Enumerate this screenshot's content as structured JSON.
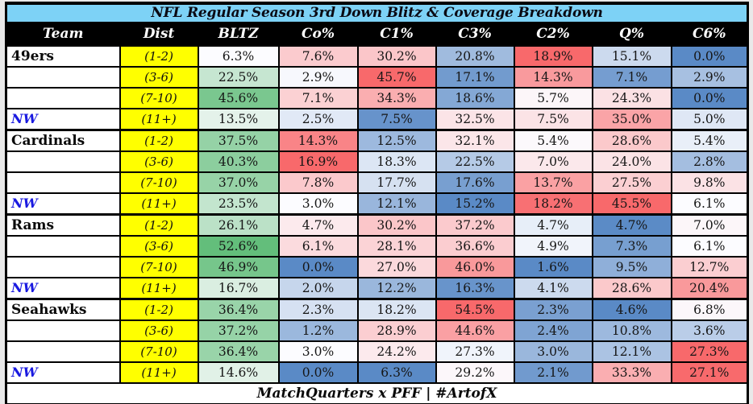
{
  "chart_data": {
    "type": "heatmap",
    "title": "NFL Regular Season 3rd Down Blitz & Coverage Breakdown",
    "columns": [
      "Team",
      "Dist",
      "BLTZ",
      "Co%",
      "C1%",
      "C3%",
      "C2%",
      "Q%",
      "C6%"
    ],
    "value_unit": "percent",
    "value_format": "one_decimal_percent",
    "color_scales": {
      "bltz": {
        "min": "#FCFCFF",
        "max": "#63BE7B"
      },
      "coverage": {
        "low": "#5A8AC6",
        "mid": "#FCFCFF",
        "high": "#F8696B"
      },
      "midpoint_rule": "50th-percentile-per-column"
    },
    "rows": [
      {
        "label": "49ers",
        "label_style": "team",
        "dist": "(1-2)",
        "values": [
          6.3,
          7.6,
          30.2,
          20.8,
          18.9,
          15.1,
          0.0
        ]
      },
      {
        "label": "",
        "label_style": "none",
        "dist": "(3-6)",
        "values": [
          22.5,
          2.9,
          45.7,
          17.1,
          14.3,
          7.1,
          2.9
        ]
      },
      {
        "label": "",
        "label_style": "none",
        "dist": "(7-10)",
        "values": [
          45.6,
          7.1,
          34.3,
          18.6,
          5.7,
          24.3,
          0.0
        ]
      },
      {
        "label": "NW",
        "label_style": "nw",
        "dist": "(11+)",
        "values": [
          13.5,
          2.5,
          7.5,
          32.5,
          7.5,
          35.0,
          5.0
        ]
      },
      {
        "label": "Cardinals",
        "label_style": "team",
        "dist": "(1-2)",
        "values": [
          37.5,
          14.3,
          12.5,
          32.1,
          5.4,
          28.6,
          5.4
        ]
      },
      {
        "label": "",
        "label_style": "none",
        "dist": "(3-6)",
        "values": [
          40.3,
          16.9,
          18.3,
          22.5,
          7.0,
          24.0,
          2.8
        ]
      },
      {
        "label": "",
        "label_style": "none",
        "dist": "(7-10)",
        "values": [
          37.0,
          7.8,
          17.7,
          17.6,
          13.7,
          27.5,
          9.8
        ]
      },
      {
        "label": "NW",
        "label_style": "nw",
        "dist": "(11+)",
        "values": [
          23.5,
          3.0,
          12.1,
          15.2,
          18.2,
          45.5,
          6.1
        ]
      },
      {
        "label": "Rams",
        "label_style": "team",
        "dist": "(1-2)",
        "values": [
          26.1,
          4.7,
          30.2,
          37.2,
          4.7,
          4.7,
          7.0
        ]
      },
      {
        "label": "",
        "label_style": "none",
        "dist": "(3-6)",
        "values": [
          52.6,
          6.1,
          28.1,
          36.6,
          4.9,
          7.3,
          6.1
        ]
      },
      {
        "label": "",
        "label_style": "none",
        "dist": "(7-10)",
        "values": [
          46.9,
          0.0,
          27.0,
          46.0,
          1.6,
          9.5,
          12.7
        ]
      },
      {
        "label": "NW",
        "label_style": "nw",
        "dist": "(11+)",
        "values": [
          16.7,
          2.0,
          12.2,
          16.3,
          4.1,
          28.6,
          20.4
        ]
      },
      {
        "label": "Seahawks",
        "label_style": "team",
        "dist": "(1-2)",
        "values": [
          36.4,
          2.3,
          18.2,
          54.5,
          2.3,
          4.6,
          6.8
        ]
      },
      {
        "label": "",
        "label_style": "none",
        "dist": "(3-6)",
        "values": [
          37.2,
          1.2,
          28.9,
          44.6,
          2.4,
          10.8,
          3.6
        ]
      },
      {
        "label": "",
        "label_style": "none",
        "dist": "(7-10)",
        "values": [
          36.4,
          3.0,
          24.2,
          27.3,
          3.0,
          12.1,
          27.3
        ]
      },
      {
        "label": "NW",
        "label_style": "nw",
        "dist": "(11+)",
        "values": [
          14.6,
          0.0,
          6.3,
          29.2,
          2.1,
          33.3,
          27.1
        ]
      }
    ]
  },
  "footer": {
    "text": "MatchQuarters x PFF | #ArtofX"
  },
  "styles": {
    "banner_bg": "#7DD2F6",
    "header_bg": "#000000",
    "header_text": "#FFFFFF",
    "dist_bg": "#FFFF00",
    "nw_color": "#1A1AE0",
    "footer_bg": "#FFFFFF",
    "page_bg": "#E9E9E9"
  }
}
